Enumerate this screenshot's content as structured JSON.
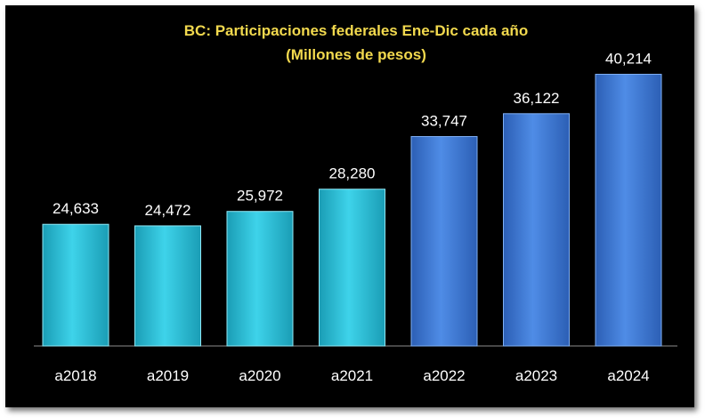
{
  "chart_data": {
    "type": "bar",
    "title": "BC: Participaciones federales Ene-Dic cada año",
    "subtitle": "(Millones de pesos)",
    "categories": [
      "a2018",
      "a2019",
      "a2020",
      "a2021",
      "a2022",
      "a2023",
      "a2024"
    ],
    "values": [
      24633,
      24472,
      25972,
      28280,
      33747,
      36122,
      40214
    ],
    "value_labels": [
      "24,633",
      "24,472",
      "25,972",
      "28,280",
      "33,747",
      "36,122",
      "40,214"
    ],
    "bar_colors": [
      "#2ec4dd",
      "#2ec4dd",
      "#2ec4dd",
      "#2ec4dd",
      "#3f7ad6",
      "#3f7ad6",
      "#3f7ad6"
    ],
    "xlabel": "",
    "ylabel": "",
    "grid": false,
    "legend": "none"
  },
  "colors": {
    "background": "#000000",
    "title": "#f2d94e",
    "labels": "#ffffff",
    "axis": "#8c8c8c"
  }
}
